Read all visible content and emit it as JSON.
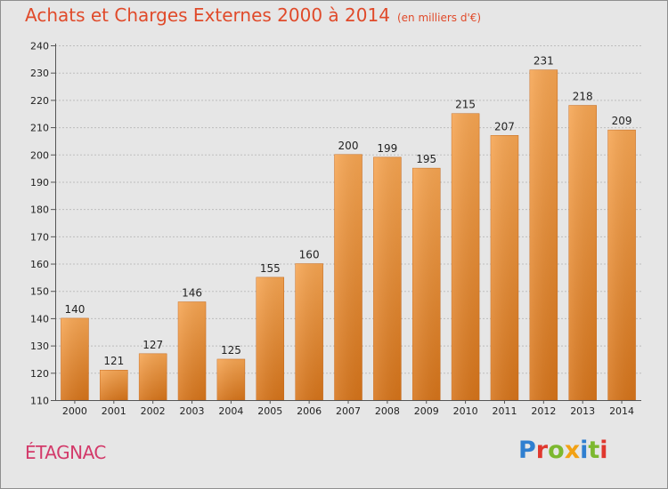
{
  "header": {
    "title": "Achats et Charges Externes 2000 à 2014",
    "unit": "(en milliers d'€)"
  },
  "footer": {
    "commune": "ÉTAGNAC",
    "logo_text": "Proxiti"
  },
  "colors": {
    "bar_light": "#f6a552",
    "bar_dark": "#d6741a",
    "background": "#e6e6e6",
    "title": "#e04a2a",
    "commune": "#d33a6a"
  },
  "chart_data": {
    "type": "bar",
    "title": "Achats et Charges Externes 2000 à 2014",
    "ylabel": "",
    "xlabel": "",
    "categories": [
      "2000",
      "2001",
      "2002",
      "2003",
      "2004",
      "2005",
      "2006",
      "2007",
      "2008",
      "2009",
      "2010",
      "2011",
      "2012",
      "2013",
      "2014"
    ],
    "values": [
      140,
      121,
      127,
      146,
      125,
      155,
      160,
      200,
      199,
      195,
      215,
      207,
      231,
      218,
      209
    ],
    "ylim": [
      110,
      240
    ],
    "yticks": [
      110,
      120,
      130,
      140,
      150,
      160,
      170,
      180,
      190,
      200,
      210,
      220,
      230,
      240
    ],
    "grid": "horizontal dashed"
  }
}
